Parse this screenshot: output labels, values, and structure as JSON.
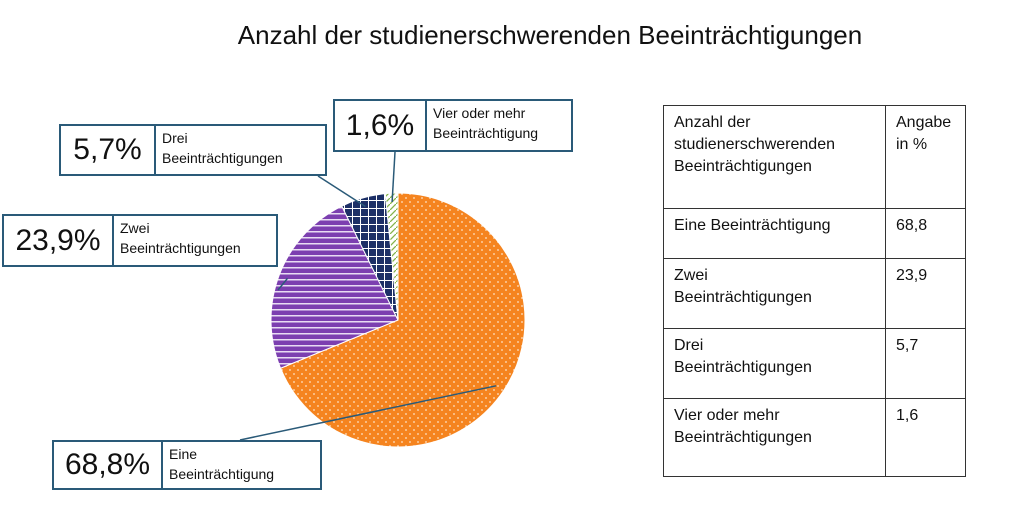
{
  "chart_data": {
    "type": "pie",
    "title": "Anzahl der studienerschwerenden Beeinträchtigungen",
    "categories": [
      "Eine Beeinträchtigung",
      "Zwei Beeinträchtigungen",
      "Drei Beeinträchtigungen",
      "Vier oder mehr Beeinträchtigungen"
    ],
    "values": [
      68.8,
      23.9,
      5.7,
      1.6
    ],
    "colors": [
      "#f5841f",
      "#7c3fb0",
      "#1c2f66",
      "#cde29f"
    ],
    "callouts": [
      {
        "value": "68,8%",
        "label_line1": "Eine",
        "label_line2": "Beeinträchtigung"
      },
      {
        "value": "23,9%",
        "label_line1": "Zwei",
        "label_line2": "Beeinträchtigungen"
      },
      {
        "value": "5,7%",
        "label_line1": "Drei",
        "label_line2": "Beeinträchtigungen"
      },
      {
        "value": "1,6%",
        "label_line1": "Vier oder mehr",
        "label_line2": "Beeinträchtigung"
      }
    ]
  },
  "table": {
    "header_col1": [
      "Anzahl der",
      "studienerschwerenden",
      "Beeinträchtigungen"
    ],
    "header_col2": [
      "Angabe",
      "in %"
    ],
    "rows": [
      {
        "label": [
          "Eine Beeinträchtigung"
        ],
        "value": "68,8"
      },
      {
        "label": [
          "Zwei",
          "Beeinträchtigungen"
        ],
        "value": "23,9"
      },
      {
        "label": [
          "Drei",
          "Beeinträchtigungen"
        ],
        "value": "5,7"
      },
      {
        "label": [
          "Vier oder mehr",
          "Beeinträchtigungen"
        ],
        "value": "1,6"
      }
    ]
  }
}
